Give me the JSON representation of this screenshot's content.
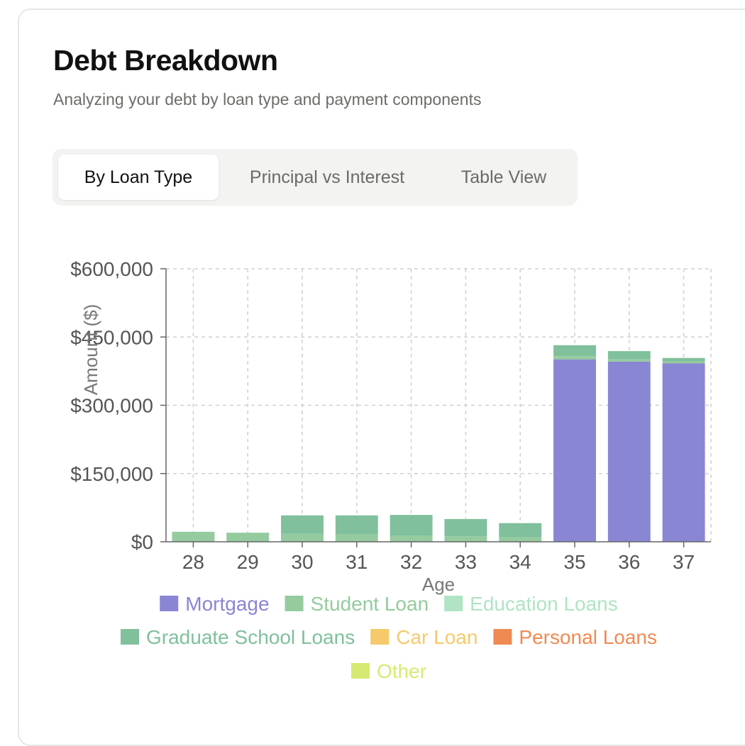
{
  "header": {
    "title": "Debt Breakdown",
    "subtitle": "Analyzing your debt by loan type and payment components"
  },
  "tabs": [
    {
      "label": "By Loan Type",
      "active": true
    },
    {
      "label": "Principal vs Interest",
      "active": false
    },
    {
      "label": "Table View",
      "active": false
    }
  ],
  "chart_data": {
    "type": "bar",
    "stacked": true,
    "xlabel": "Age",
    "ylabel": "Amount ($)",
    "ylim": [
      0,
      600000
    ],
    "yticks": [
      "$0",
      "$150,000",
      "$300,000",
      "$450,000",
      "$600,000"
    ],
    "grid": true,
    "legend_position": "bottom",
    "categories": [
      "28",
      "29",
      "30",
      "31",
      "32",
      "33",
      "34",
      "35",
      "36",
      "37"
    ],
    "series": [
      {
        "name": "Mortgage",
        "color": "#8986d3",
        "values": [
          0,
          0,
          0,
          0,
          0,
          0,
          0,
          401000,
          396000,
          392000
        ]
      },
      {
        "name": "Student Loan",
        "color": "#95cb9e",
        "values": [
          22000,
          20000,
          18000,
          16000,
          14000,
          12000,
          10000,
          7000,
          5000,
          4000
        ]
      },
      {
        "name": "Education Loans",
        "color": "#b0e4c4",
        "values": [
          0,
          0,
          0,
          0,
          0,
          0,
          0,
          0,
          0,
          0
        ]
      },
      {
        "name": "Graduate School Loans",
        "color": "#80c09c",
        "values": [
          0,
          0,
          40000,
          42000,
          45000,
          38000,
          31000,
          24000,
          18000,
          8000
        ]
      },
      {
        "name": "Car Loan",
        "color": "#f6c96b",
        "values": [
          0,
          0,
          0,
          0,
          0,
          0,
          0,
          0,
          0,
          0
        ]
      },
      {
        "name": "Personal Loans",
        "color": "#ef8a52",
        "values": [
          0,
          0,
          0,
          0,
          0,
          0,
          0,
          0,
          0,
          0
        ]
      },
      {
        "name": "Other",
        "color": "#d6ea72",
        "values": [
          0,
          0,
          0,
          0,
          0,
          0,
          0,
          0,
          0,
          0
        ]
      }
    ]
  }
}
